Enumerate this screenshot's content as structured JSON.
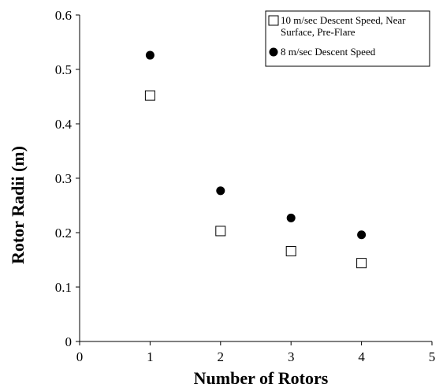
{
  "chart_data": {
    "type": "scatter",
    "title": "",
    "xlabel": "Number of Rotors",
    "ylabel": "Rotor Radii (m)",
    "xlim": [
      0,
      5
    ],
    "ylim": [
      0,
      0.6
    ],
    "xticks": [
      0,
      1,
      2,
      3,
      4,
      5
    ],
    "yticks": [
      0,
      0.1,
      0.2,
      0.3,
      0.4,
      0.5,
      0.6
    ],
    "grid": false,
    "legend_position": "top-right",
    "series": [
      {
        "name": "10 m/sec Descent Speed, Near Surface, Pre-Flare",
        "legend_lines": [
          "10 m/sec Descent Speed, Near",
          "Surface, Pre-Flare"
        ],
        "marker": "open-square",
        "color": "#000000",
        "x": [
          1,
          2,
          3,
          4
        ],
        "y": [
          0.452,
          0.203,
          0.166,
          0.144
        ]
      },
      {
        "name": "8 m/sec Descent Speed",
        "legend_lines": [
          "8 m/sec Descent Speed"
        ],
        "marker": "filled-circle",
        "color": "#000000",
        "x": [
          1,
          2,
          3,
          4
        ],
        "y": [
          0.526,
          0.277,
          0.227,
          0.196
        ]
      }
    ]
  }
}
